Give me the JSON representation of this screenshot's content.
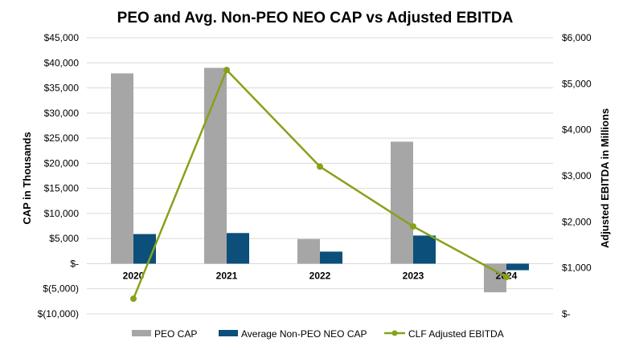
{
  "chart_data": {
    "type": "bar",
    "title": "PEO and Avg. Non-PEO NEO CAP vs Adjusted EBITDA",
    "categories": [
      "2020",
      "2021",
      "2022",
      "2023",
      "2024"
    ],
    "series": [
      {
        "name": "PEO CAP",
        "axis": "left",
        "kind": "bar",
        "color": "#a6a6a6",
        "values": [
          37900,
          39000,
          4900,
          24300,
          -5700
        ]
      },
      {
        "name": "Average Non-PEO NEO CAP",
        "axis": "left",
        "kind": "bar",
        "color": "#0b4f7a",
        "values": [
          5900,
          6100,
          2400,
          5600,
          -1300
        ]
      },
      {
        "name": "CLF Adjusted EBITDA",
        "axis": "right",
        "kind": "line",
        "color": "#86a21b",
        "values": [
          330,
          5300,
          3200,
          1900,
          800
        ]
      }
    ],
    "ylabel": "CAP in Thousands",
    "y2label": "Adjusted EBITDA in Millions",
    "ylim": [
      -10000,
      45000
    ],
    "y2lim": [
      0,
      6000
    ],
    "yticks": [
      45000,
      40000,
      35000,
      30000,
      25000,
      20000,
      15000,
      10000,
      5000,
      0,
      -5000,
      -10000
    ],
    "ytick_labels": [
      "$45,000",
      "$40,000",
      "$35,000",
      "$30,000",
      "$25,000",
      "$20,000",
      "$15,000",
      "$10,000",
      "$5,000",
      "$-",
      "$(5,000)",
      "$(10,000)"
    ],
    "y2ticks": [
      6000,
      5000,
      4000,
      3000,
      2000,
      1000,
      0
    ],
    "y2tick_labels": [
      "$6,000",
      "$5,000",
      "$4,000",
      "$3,000",
      "$2,000",
      "$1,000",
      "$-"
    ],
    "grid": true,
    "legend": "bottom"
  }
}
